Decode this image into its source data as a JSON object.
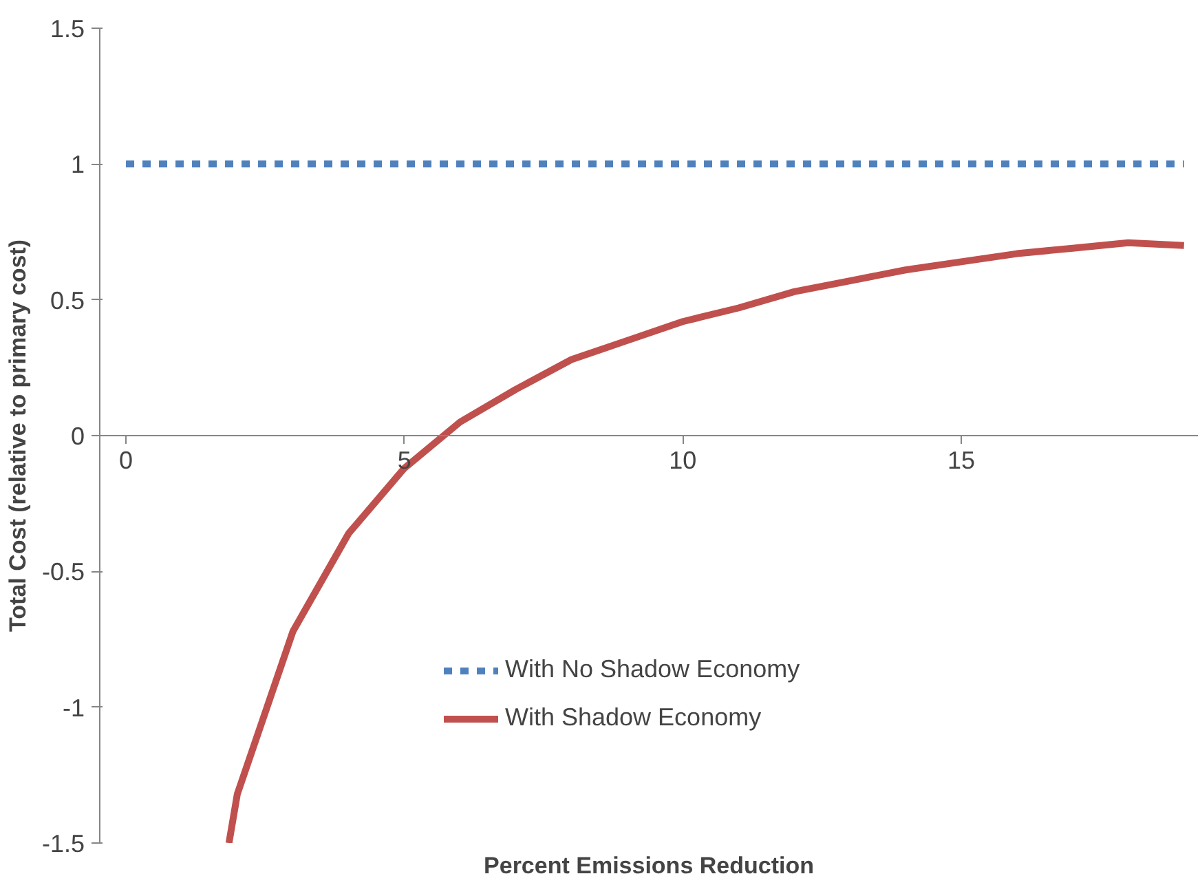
{
  "chart_data": {
    "type": "line",
    "xlabel": "Percent Emissions Reduction",
    "ylabel": "Total Cost (relative to primary cost)",
    "xlim": [
      -0.47,
      19.25
    ],
    "ylim": [
      -1.5,
      1.5
    ],
    "xticks": [
      0,
      5,
      10,
      15
    ],
    "yticks": [
      -1.5,
      -1,
      -0.5,
      0,
      0.5,
      1,
      1.5
    ],
    "grid": false,
    "legend": "bottom",
    "marker": "none",
    "series": [
      {
        "name": "With No Shadow Economy",
        "color": "#4f81bd",
        "line_style": "dashed",
        "x": [
          0,
          19
        ],
        "values": [
          1,
          1
        ]
      },
      {
        "name": "With Shadow Economy",
        "color": "#c0504d",
        "line_style": "solid",
        "x": [
          1.85,
          2,
          3,
          4,
          5,
          6,
          7,
          8,
          9,
          10,
          11,
          12,
          13,
          14,
          15,
          16,
          17,
          18,
          19
        ],
        "values": [
          -1.5,
          -1.32,
          -0.72,
          -0.36,
          -0.12,
          0.05,
          0.17,
          0.28,
          0.35,
          0.42,
          0.47,
          0.53,
          0.57,
          0.61,
          0.64,
          0.67,
          0.69,
          0.71,
          0.7
        ]
      }
    ]
  }
}
